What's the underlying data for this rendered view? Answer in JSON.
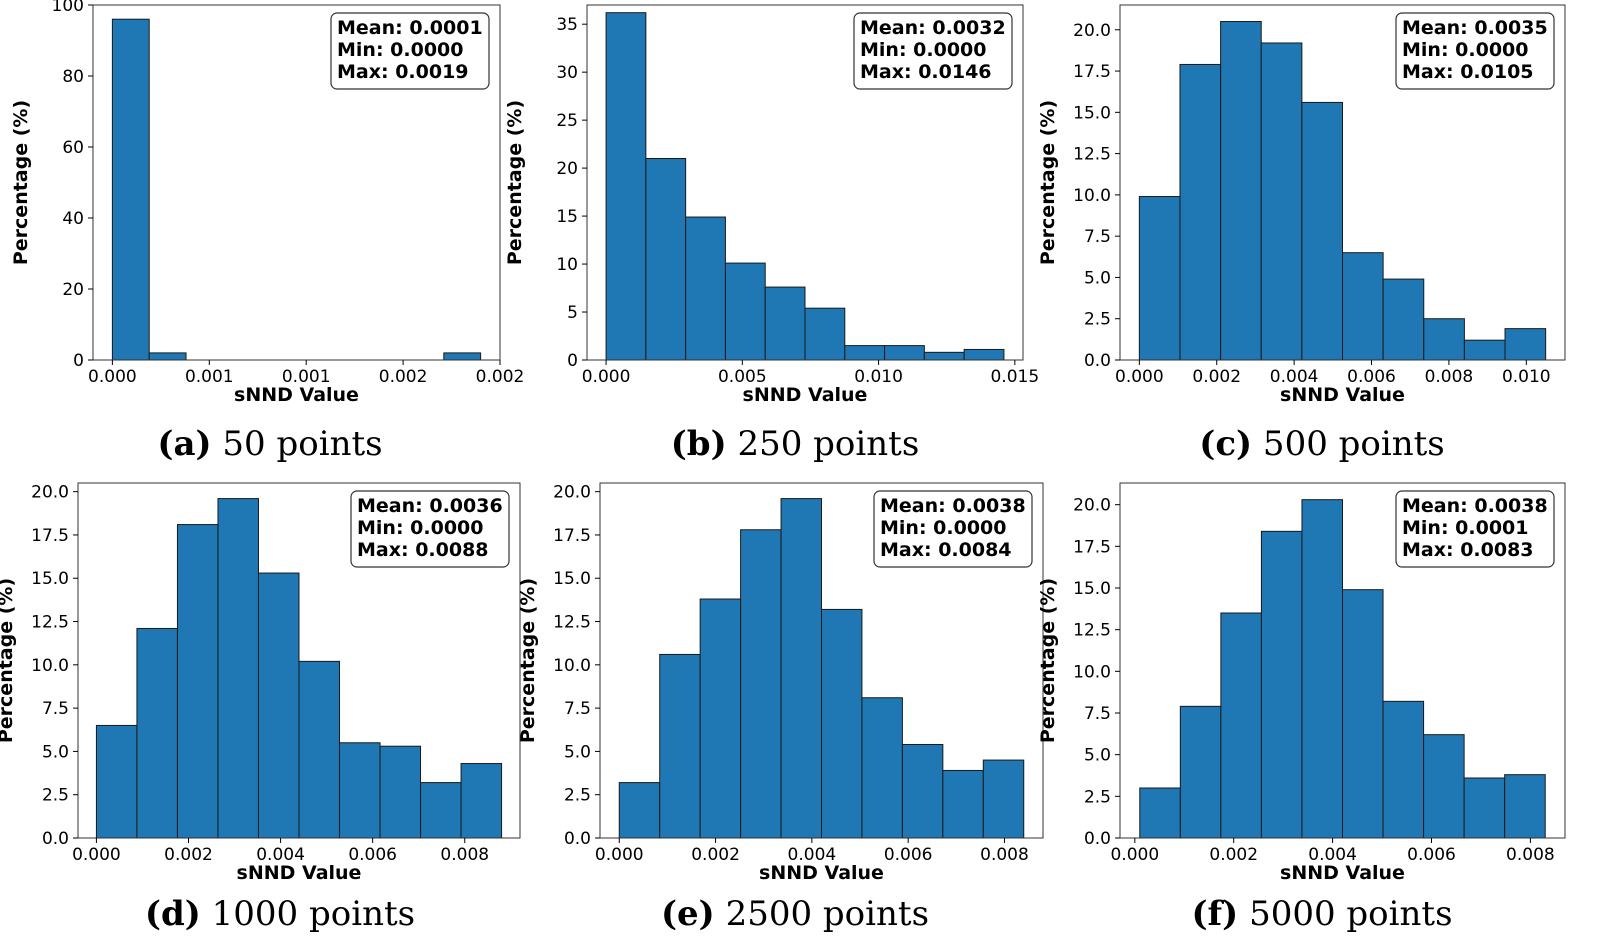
{
  "chart_data": [
    {
      "type": "bar",
      "caption_tag": "(a)",
      "caption_text": "50 points",
      "xlabel": "sNND Value",
      "ylabel": "Percentage (%)",
      "xlim": [
        -0.0001,
        0.002
      ],
      "ylim": [
        0,
        100
      ],
      "bin_start": 0.0,
      "bin_width": 0.00019,
      "values": [
        96.0,
        2.0,
        0,
        0,
        0,
        0,
        0,
        0,
        0,
        2.0
      ],
      "xticks": [
        0.0,
        0.0005,
        0.001,
        0.0015,
        0.002
      ],
      "xtick_labels": [
        "0.000",
        "0.001",
        "0.001",
        "0.002",
        "0.002"
      ],
      "yticks": [
        0,
        20,
        40,
        60,
        80,
        100
      ],
      "ytick_labels": [
        "0",
        "20",
        "40",
        "60",
        "80",
        "100"
      ],
      "stats": [
        "Mean: 0.0001",
        "Min: 0.0000",
        "Max: 0.0019"
      ]
    },
    {
      "type": "bar",
      "caption_tag": "(b)",
      "caption_text": "250 points",
      "xlabel": "sNND Value",
      "ylabel": "Percentage (%)",
      "xlim": [
        -0.0007,
        0.0153
      ],
      "ylim": [
        0,
        37
      ],
      "bin_start": 0.0,
      "bin_width": 0.00146,
      "values": [
        36.2,
        21.0,
        14.9,
        10.1,
        7.6,
        5.4,
        1.5,
        1.5,
        0.8,
        1.1
      ],
      "xticks": [
        0.0,
        0.005,
        0.01,
        0.015
      ],
      "xtick_labels": [
        "0.000",
        "0.005",
        "0.010",
        "0.015"
      ],
      "yticks": [
        0,
        5,
        10,
        15,
        20,
        25,
        30,
        35
      ],
      "ytick_labels": [
        "0",
        "5",
        "10",
        "15",
        "20",
        "25",
        "30",
        "35"
      ],
      "stats": [
        "Mean: 0.0032",
        "Min: 0.0000",
        "Max: 0.0146"
      ]
    },
    {
      "type": "bar",
      "caption_tag": "(c)",
      "caption_text": "500 points",
      "xlabel": "sNND Value",
      "ylabel": "Percentage (%)",
      "xlim": [
        -0.0005,
        0.011
      ],
      "ylim": [
        0,
        21.5
      ],
      "bin_start": 0.0,
      "bin_width": 0.00105,
      "values": [
        9.9,
        17.9,
        20.5,
        19.2,
        15.6,
        6.5,
        4.9,
        2.5,
        1.2,
        1.9
      ],
      "xticks": [
        0.0,
        0.002,
        0.004,
        0.006,
        0.008,
        0.01
      ],
      "xtick_labels": [
        "0.000",
        "0.002",
        "0.004",
        "0.006",
        "0.008",
        "0.010"
      ],
      "yticks": [
        0,
        2.5,
        5,
        7.5,
        10,
        12.5,
        15,
        17.5,
        20
      ],
      "ytick_labels": [
        "0.0",
        "2.5",
        "5.0",
        "7.5",
        "10.0",
        "12.5",
        "15.0",
        "17.5",
        "20.0"
      ],
      "stats": [
        "Mean: 0.0035",
        "Min: 0.0000",
        "Max: 0.0105"
      ]
    },
    {
      "type": "bar",
      "caption_tag": "(d)",
      "caption_text": "1000 points",
      "xlabel": "sNND Value",
      "ylabel": "Percentage (%)",
      "xlim": [
        -0.0004,
        0.0092
      ],
      "ylim": [
        0,
        20.5
      ],
      "bin_start": 0.0,
      "bin_width": 0.00088,
      "values": [
        6.5,
        12.1,
        18.1,
        19.6,
        15.3,
        10.2,
        5.5,
        5.3,
        3.2,
        4.3
      ],
      "xticks": [
        0.0,
        0.002,
        0.004,
        0.006,
        0.008
      ],
      "xtick_labels": [
        "0.000",
        "0.002",
        "0.004",
        "0.006",
        "0.008"
      ],
      "yticks": [
        0,
        2.5,
        5,
        7.5,
        10,
        12.5,
        15,
        17.5,
        20
      ],
      "ytick_labels": [
        "0.0",
        "2.5",
        "5.0",
        "7.5",
        "10.0",
        "12.5",
        "15.0",
        "17.5",
        "20.0"
      ],
      "stats": [
        "Mean: 0.0036",
        "Min: 0.0000",
        "Max: 0.0088"
      ]
    },
    {
      "type": "bar",
      "caption_tag": "(e)",
      "caption_text": "2500 points",
      "xlabel": "sNND Value",
      "ylabel": "Percentage (%)",
      "xlim": [
        -0.0004,
        0.0088
      ],
      "ylim": [
        0,
        20.5
      ],
      "bin_start": 0.0,
      "bin_width": 0.00084,
      "values": [
        3.2,
        10.6,
        13.8,
        17.8,
        19.6,
        13.2,
        8.1,
        5.4,
        3.9,
        4.5
      ],
      "xticks": [
        0.0,
        0.002,
        0.004,
        0.006,
        0.008
      ],
      "xtick_labels": [
        "0.000",
        "0.002",
        "0.004",
        "0.006",
        "0.008"
      ],
      "yticks": [
        0,
        2.5,
        5,
        7.5,
        10,
        12.5,
        15,
        17.5,
        20
      ],
      "ytick_labels": [
        "0.0",
        "2.5",
        "5.0",
        "7.5",
        "10.0",
        "12.5",
        "15.0",
        "17.5",
        "20.0"
      ],
      "stats": [
        "Mean: 0.0038",
        "Min: 0.0000",
        "Max: 0.0084"
      ]
    },
    {
      "type": "bar",
      "caption_tag": "(f)",
      "caption_text": "5000 points",
      "xlabel": "sNND Value",
      "ylabel": "Percentage (%)",
      "xlim": [
        -0.0003,
        0.0087
      ],
      "ylim": [
        0,
        21.3
      ],
      "bin_start": 0.0001,
      "bin_width": 0.00082,
      "values": [
        3.0,
        7.9,
        13.5,
        18.4,
        20.3,
        14.9,
        8.2,
        6.2,
        3.6,
        3.8
      ],
      "xticks": [
        0.0,
        0.002,
        0.004,
        0.006,
        0.008
      ],
      "xtick_labels": [
        "0.000",
        "0.002",
        "0.004",
        "0.006",
        "0.008"
      ],
      "yticks": [
        0,
        2.5,
        5,
        7.5,
        10,
        12.5,
        15,
        17.5,
        20
      ],
      "ytick_labels": [
        "0.0",
        "2.5",
        "5.0",
        "7.5",
        "10.0",
        "12.5",
        "15.0",
        "17.5",
        "20.0"
      ],
      "stats": [
        "Mean: 0.0038",
        "Min: 0.0001",
        "Max: 0.0083"
      ]
    }
  ]
}
